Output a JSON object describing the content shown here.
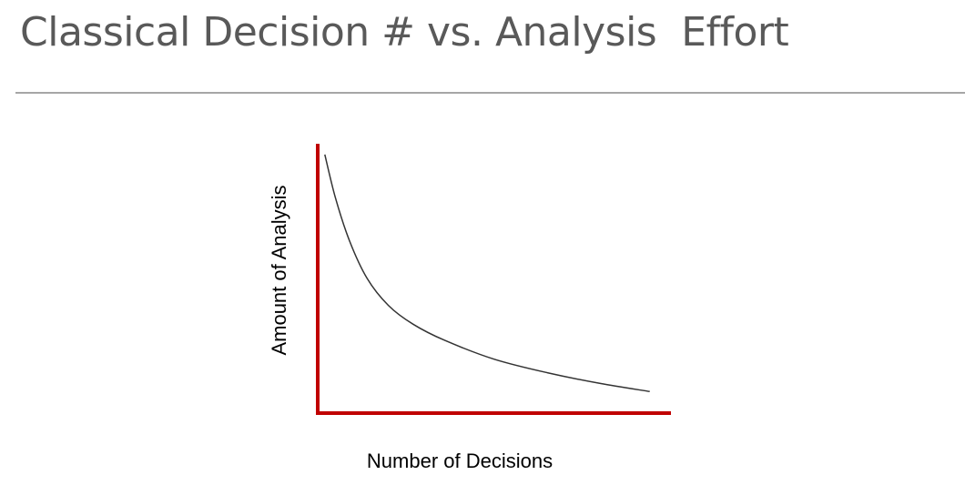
{
  "slide": {
    "title": "Classical Decision # vs. Analysis  Effort"
  },
  "colors": {
    "title": "#595959",
    "rule": "#a6a6a6",
    "axes": "#c00000",
    "curve": "#333333"
  },
  "chart_data": {
    "type": "line",
    "title": "",
    "xlabel": "Number of Decisions",
    "ylabel": "Amount of Analysis",
    "x_ticks_shown": false,
    "y_ticks_shown": false,
    "grid": false,
    "legend": "none",
    "xlim": [
      0,
      1
    ],
    "ylim": [
      0,
      1
    ],
    "series": [
      {
        "values": [
          {
            "x": 0.02,
            "y": 0.96
          },
          {
            "x": 0.05,
            "y": 0.8
          },
          {
            "x": 0.09,
            "y": 0.64
          },
          {
            "x": 0.14,
            "y": 0.5
          },
          {
            "x": 0.2,
            "y": 0.4
          },
          {
            "x": 0.27,
            "y": 0.33
          },
          {
            "x": 0.36,
            "y": 0.27
          },
          {
            "x": 0.5,
            "y": 0.2
          },
          {
            "x": 0.65,
            "y": 0.15
          },
          {
            "x": 0.8,
            "y": 0.11
          },
          {
            "x": 0.94,
            "y": 0.08
          }
        ]
      }
    ]
  }
}
